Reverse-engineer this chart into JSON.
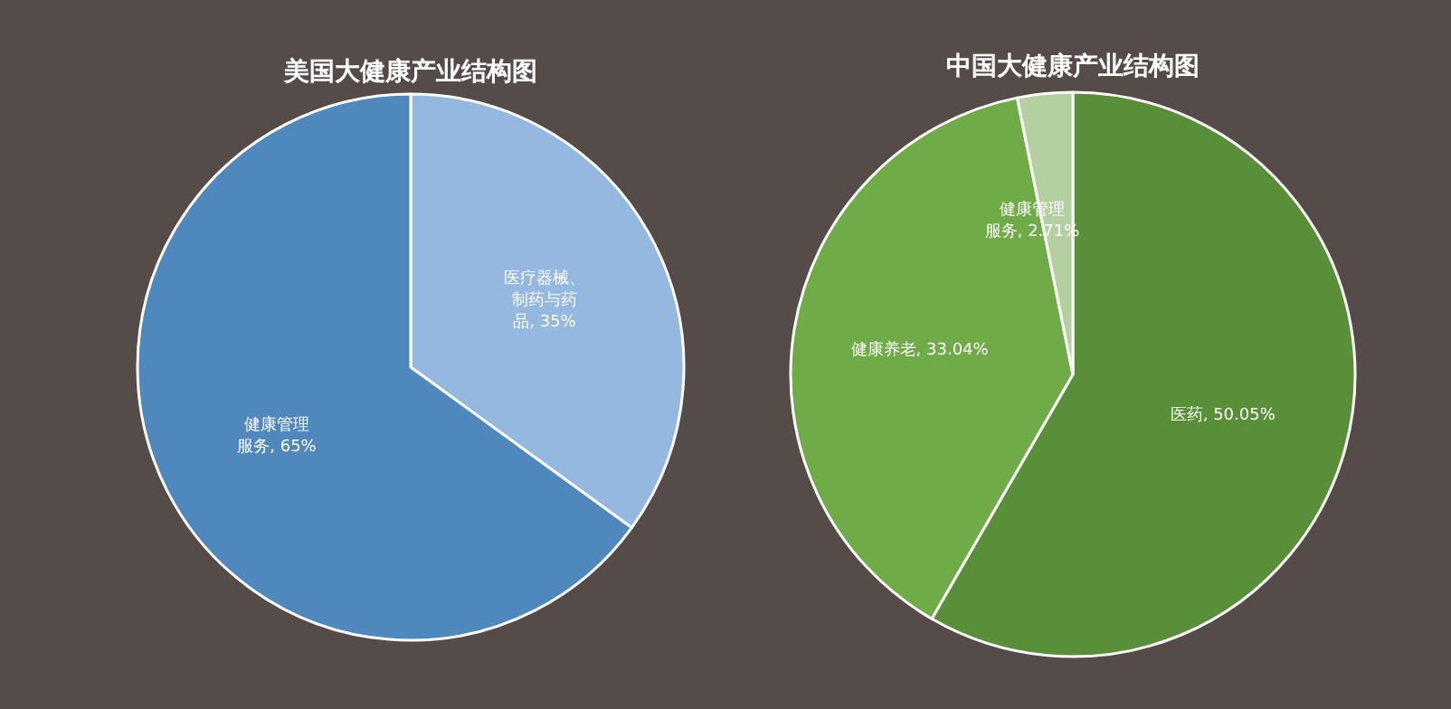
{
  "chart_data": [
    {
      "type": "pie",
      "title": "美国大健康产业结构图",
      "categories": [
        "医疗器械、制药与药品",
        "健康管理服务"
      ],
      "values": [
        35,
        65
      ],
      "colors": [
        "#95b8e0",
        "#4f88bd"
      ],
      "value_labels": [
        ", 35%",
        ", 65%"
      ]
    },
    {
      "type": "pie",
      "title": "中国大健康产业结构图",
      "categories": [
        "医药",
        "健康养老",
        "健康管理服务"
      ],
      "values": [
        50.05,
        33.04,
        2.71
      ],
      "colors": [
        "#5a8f3a",
        "#6fac47",
        "#b5d0a0"
      ],
      "value_labels": [
        ", 50.05%",
        ", 33.04%",
        ", 2.71%"
      ]
    }
  ]
}
